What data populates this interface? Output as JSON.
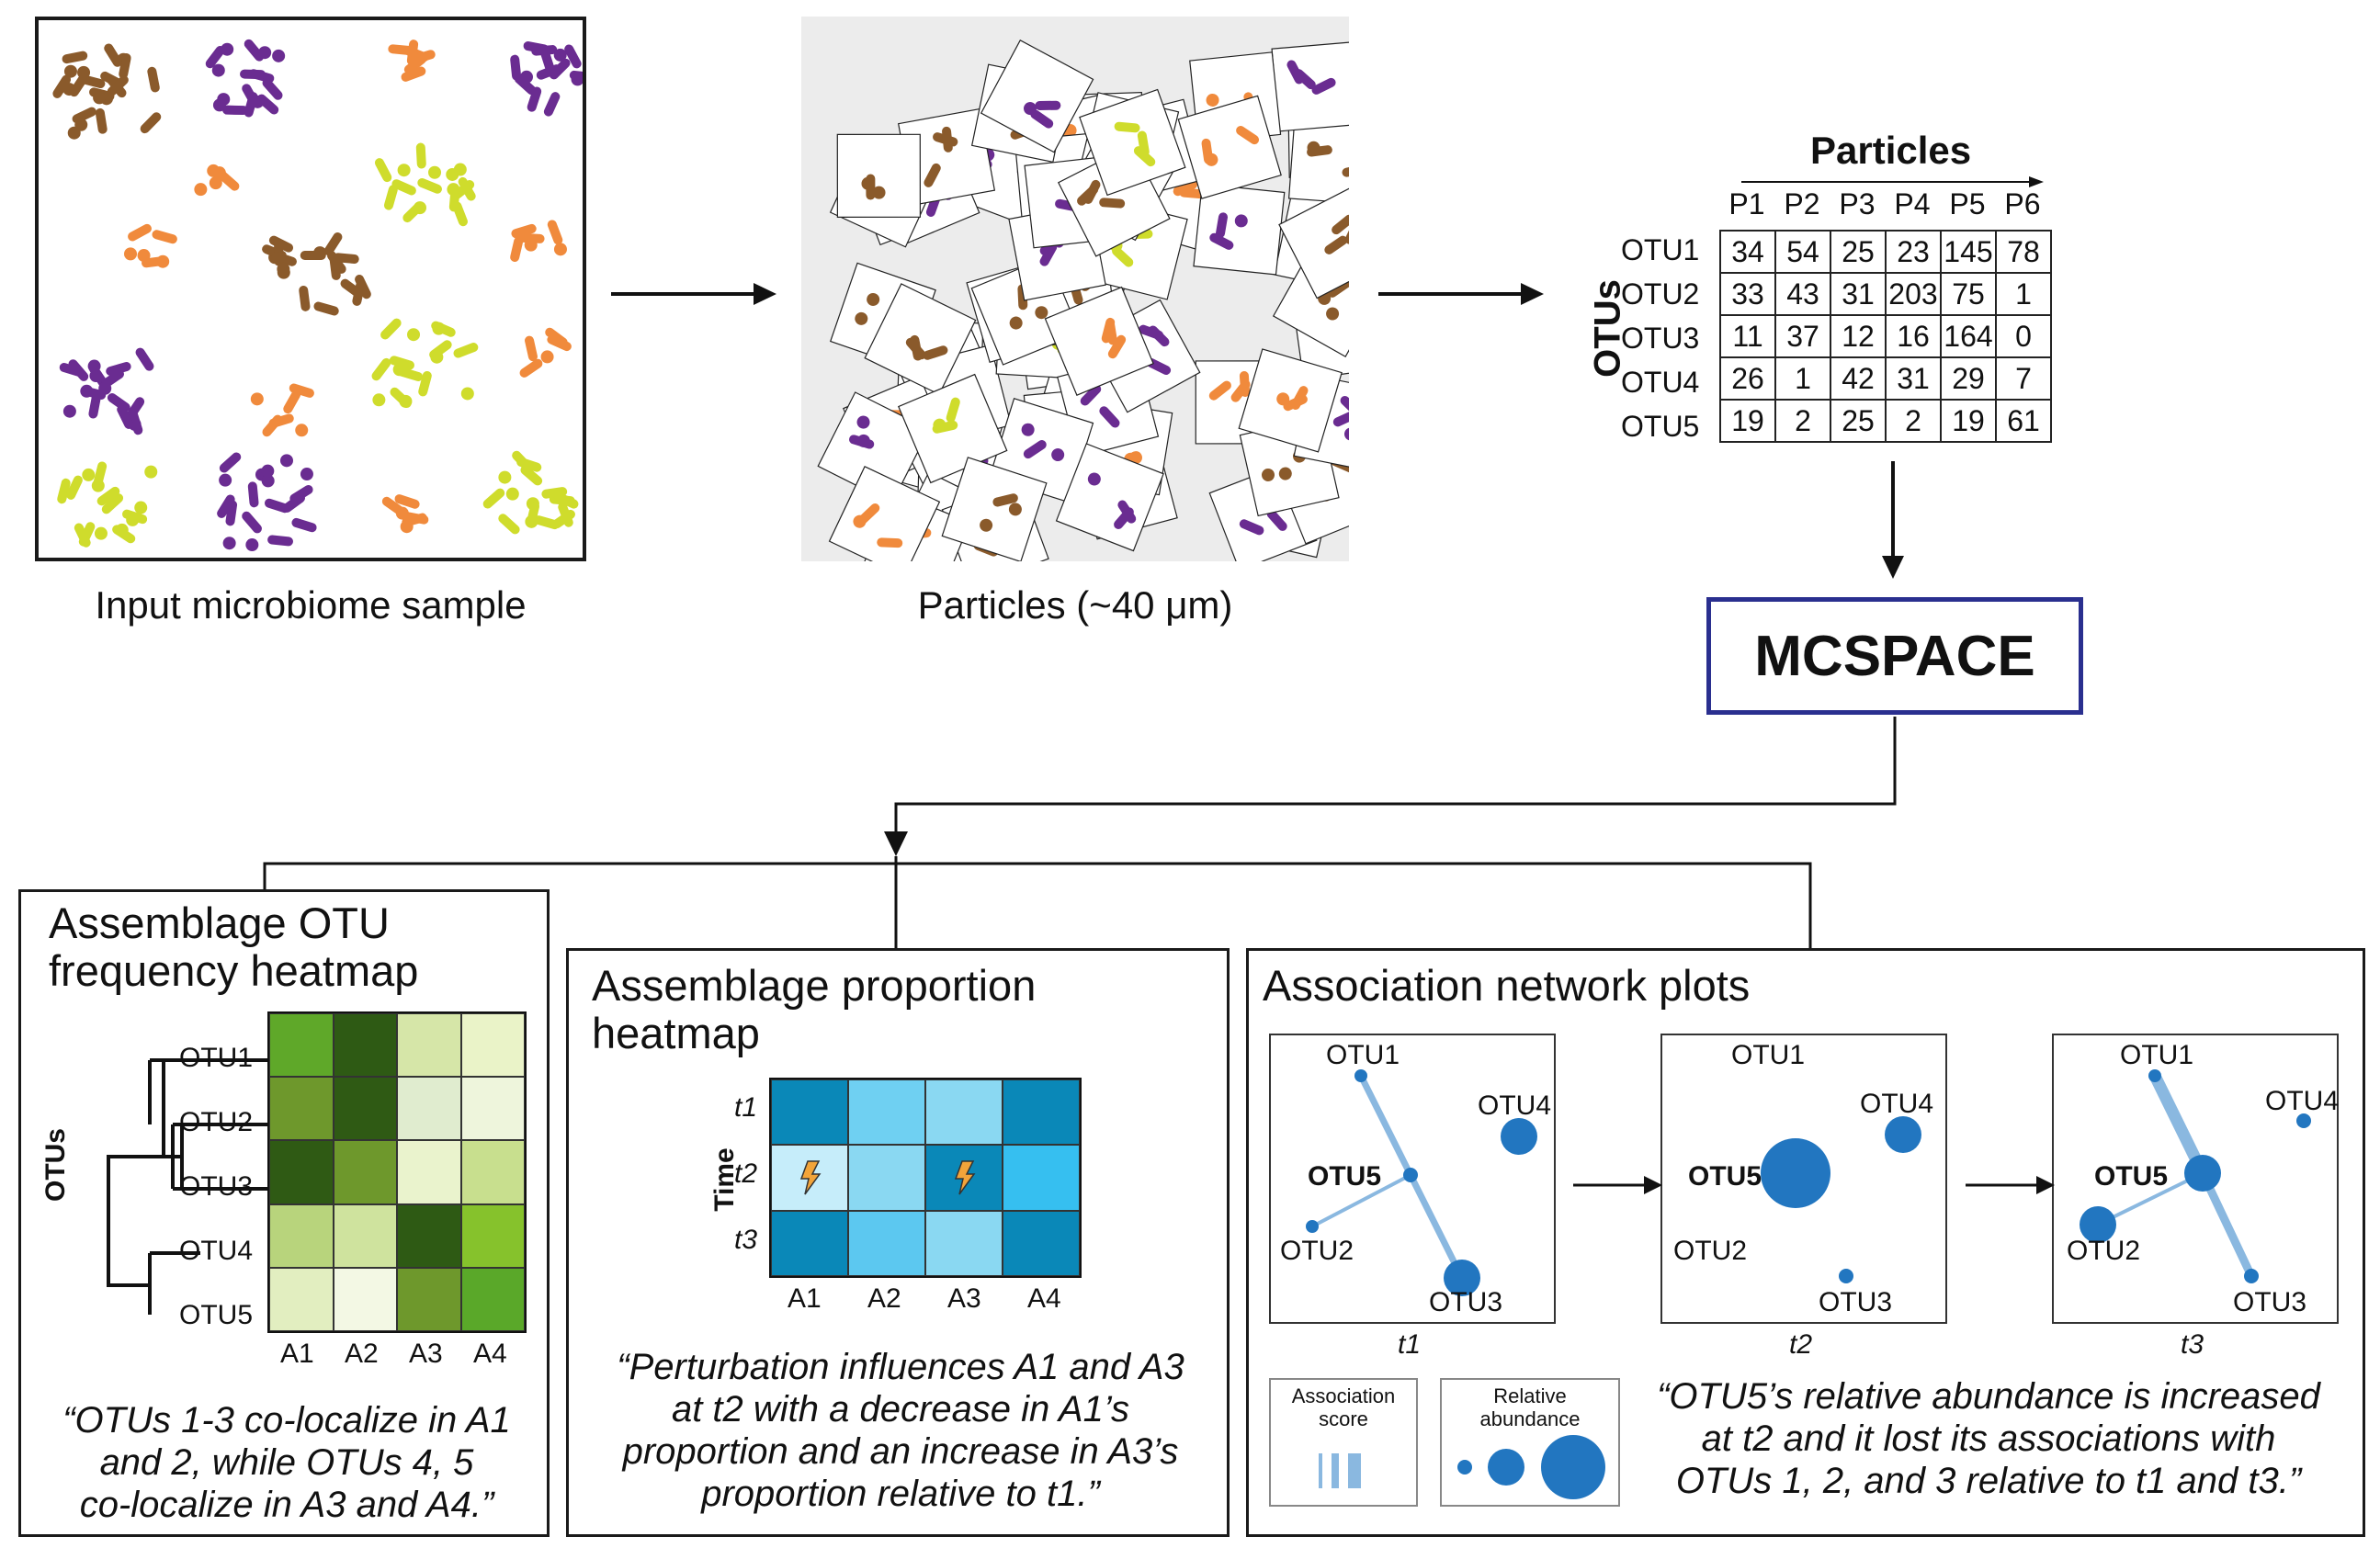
{
  "top": {
    "sample_caption": "Input microbiome sample",
    "particles_caption": "Particles (~40 μm)",
    "matrix": {
      "title": "Particles",
      "axis_label": "OTUs",
      "columns": [
        "P1",
        "P2",
        "P3",
        "P4",
        "P5",
        "P6"
      ],
      "rows": [
        {
          "name": "OTU1",
          "values": [
            "34",
            "54",
            "25",
            "23",
            "145",
            "78"
          ]
        },
        {
          "name": "OTU2",
          "values": [
            "33",
            "43",
            "31",
            "203",
            "75",
            "1"
          ]
        },
        {
          "name": "OTU3",
          "values": [
            "11",
            "37",
            "12",
            "16",
            "164",
            "0"
          ]
        },
        {
          "name": "OTU4",
          "values": [
            "26",
            "1",
            "42",
            "31",
            "29",
            "7"
          ]
        },
        {
          "name": "OTU5",
          "values": [
            "19",
            "2",
            "25",
            "2",
            "19",
            "61"
          ]
        }
      ]
    },
    "model_name": "MCSPACE"
  },
  "panel1": {
    "title_line1": "Assemblage OTU",
    "title_line2": "frequency heatmap",
    "axis_label": "OTUs",
    "row_labels": [
      "OTU1",
      "OTU2",
      "OTU3",
      "OTU4",
      "OTU5"
    ],
    "col_labels": [
      "A1",
      "A2",
      "A3",
      "A4"
    ],
    "cell_colors": [
      [
        "#5fa829",
        "#2e5a14",
        "#d6e6a8",
        "#eaf3c8"
      ],
      [
        "#6e982c",
        "#2f5a14",
        "#e0eccf",
        "#eef5dc"
      ],
      [
        "#2f5a14",
        "#6e982c",
        "#eaf3cd",
        "#c8df8e"
      ],
      [
        "#b8d47c",
        "#cfe39e",
        "#2e5a14",
        "#86c22c"
      ],
      [
        "#e2eec0",
        "#f3f8e4",
        "#6e982c",
        "#5aa829"
      ]
    ],
    "quote_lines": [
      "“OTUs 1-3 co-localize in A1",
      "and 2, while OTUs 4, 5",
      "co-localize in A3 and A4.”"
    ]
  },
  "panel2": {
    "title_line1": "Assemblage proportion",
    "title_line2": "heatmap",
    "axis_label": "Time",
    "row_labels": [
      "t1",
      "t2",
      "t3"
    ],
    "col_labels": [
      "A1",
      "A2",
      "A3",
      "A4"
    ],
    "cell_colors": [
      [
        "#0a88b8",
        "#6fd0f2",
        "#8ad8f2",
        "#0a88b8"
      ],
      [
        "#c6edfa",
        "#8ad8f2",
        "#0a88b8",
        "#36bff0"
      ],
      [
        "#0a88b8",
        "#5cc8f0",
        "#8ad8f2",
        "#0a88b8"
      ]
    ],
    "perturbed_cells": [
      [
        1,
        0
      ],
      [
        1,
        2
      ]
    ],
    "quote_lines": [
      "“Perturbation influences A1 and A3",
      "at t2 with a decrease in A1’s",
      "proportion and an increase in A3’s",
      "proportion relative to t1.”"
    ]
  },
  "panel3": {
    "title": "Association network plots",
    "networks": [
      {
        "time": "t1",
        "labels": {
          "otu1": "OTU1",
          "otu2": "OTU2",
          "otu3": "OTU3",
          "otu4": "OTU4",
          "otu5": "OTU5"
        }
      },
      {
        "time": "t2",
        "labels": {
          "otu1": "OTU1",
          "otu2": "OTU2",
          "otu3": "OTU3",
          "otu4": "OTU4",
          "otu5": "OTU5"
        }
      },
      {
        "time": "t3",
        "labels": {
          "otu1": "OTU1",
          "otu2": "OTU2",
          "otu3": "OTU3",
          "otu4": "OTU4",
          "otu5": "OTU5"
        }
      }
    ],
    "legend_assoc_line1": "Association",
    "legend_assoc_line2": "score",
    "legend_abund_line1": "Relative",
    "legend_abund_line2": "abundance",
    "quote_lines": [
      "“OTU5’s relative abundance is increased",
      "at t2 and it lost its associations with",
      "OTUs 1, 2, and 3 relative to t1 and t3.”"
    ]
  },
  "colors": {
    "brown": "#8a5a2b",
    "purple": "#6a2c91",
    "orange": "#f08a3c",
    "yellow": "#cfdc2c",
    "node_blue": "#2276c0",
    "edge_blue": "#8ab8e0",
    "mcspace_border": "#2a2f8f"
  }
}
